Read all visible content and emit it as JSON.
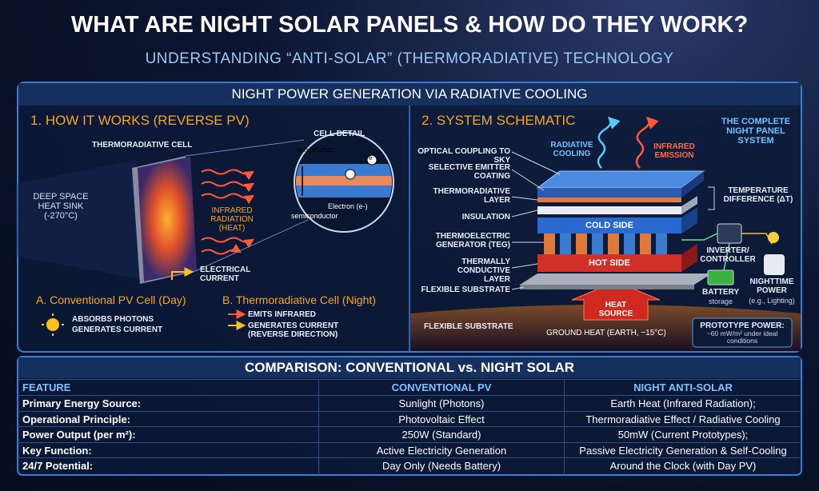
{
  "header": {
    "title": "WHAT ARE NIGHT SOLAR PANELS & HOW DO THEY WORK?",
    "subtitle": "UNDERSTANDING “ANTI-SOLAR” (THERMORADIATIVE) TECHNOLOGY"
  },
  "panel": {
    "title": "NIGHT POWER GENERATION VIA RADIATIVE COOLING"
  },
  "how_it_works": {
    "title": "1. HOW IT WORKS (REVERSE PV)",
    "cell_label": "THERMORADIATIVE CELL",
    "heat_sink": "DEEP SPACE HEAT SINK (-270°C)",
    "radiation": "INFRARED RADIATION (HEAT)",
    "current": "ELECTRICAL CURRENT",
    "detail": {
      "title": "CELL DETAIL",
      "junction": "p-n junction",
      "electron_symbol": "e⁻",
      "electron": "Electron (e-)",
      "material": "semiconductor"
    },
    "conventional": {
      "title": "A. Conventional PV Cell (Day)",
      "lines": [
        "ABSORBS PHOTONS",
        "GENERATES CURRENT"
      ]
    },
    "thermoradiative": {
      "title": "B. Thermoradiative Cell (Night)",
      "lines": [
        "EMITS INFRARED",
        "GENERATES CURRENT (REVERSE DIRECTION)"
      ]
    }
  },
  "schematic": {
    "title": "2. SYSTEM SCHEMATIC",
    "system_label": "THE COMPLETE NIGHT PANEL SYSTEM",
    "layers": [
      "OPTICAL COUPLING TO SKY",
      "SELECTIVE EMITTER COATING",
      "THERMORADIATIVE LAYER",
      "INSULATION",
      "THERMOELECTRIC GENERATOR (TEG)",
      "THERMALLY CONDUCTIVE LAYER",
      "FLEXIBLE SUBSTRATE"
    ],
    "radiative_cooling": "RADIATIVE COOLING",
    "infrared_emission": "INFRARED EMISSION",
    "delta_t": "TEMPERATURE DIFFERENCE (ΔT)",
    "cold_side": "COLD SIDE",
    "hot_side": "HOT SIDE",
    "inverter": "INVERTER/ CONTROLLER",
    "battery": "BATTERY",
    "battery_note": "storage",
    "output": "NIGHTTIME POWER",
    "output_note": "(e.g., Lighting)",
    "heat_source": "HEAT SOURCE",
    "ground_label": "FLEXIBLE SUBSTRATE",
    "ground_heat": "GROUND HEAT (EARTH, ~15°C)",
    "prototype": {
      "title": "PROTOTYPE POWER:",
      "note": "~60 mW/m² under ideal conditions"
    }
  },
  "table": {
    "title": "COMPARISON: CONVENTIONAL vs. NIGHT SOLAR",
    "header": [
      "FEATURE",
      "CONVENTIONAL PV",
      "NIGHT ANTI-SOLAR"
    ],
    "rows": [
      [
        "Primary Energy Source:",
        "Sunlight (Photons)",
        "Earth Heat (Infrared Radiation);"
      ],
      [
        "Operational Principle:",
        "Photovoltaic Effect",
        "Thermoradiative Effect / Radiative Cooling"
      ],
      [
        "Power Output (per m²):",
        "250W (Standard)",
        "50mW (Current Prototypes);"
      ],
      [
        "Key Function:",
        "Active Electricity Generation",
        "Passive Electricity Generation & Self-Cooling"
      ],
      [
        "24/7 Potential:",
        "Day Only (Needs Battery)",
        "Around the Clock (with Day PV)"
      ]
    ]
  }
}
